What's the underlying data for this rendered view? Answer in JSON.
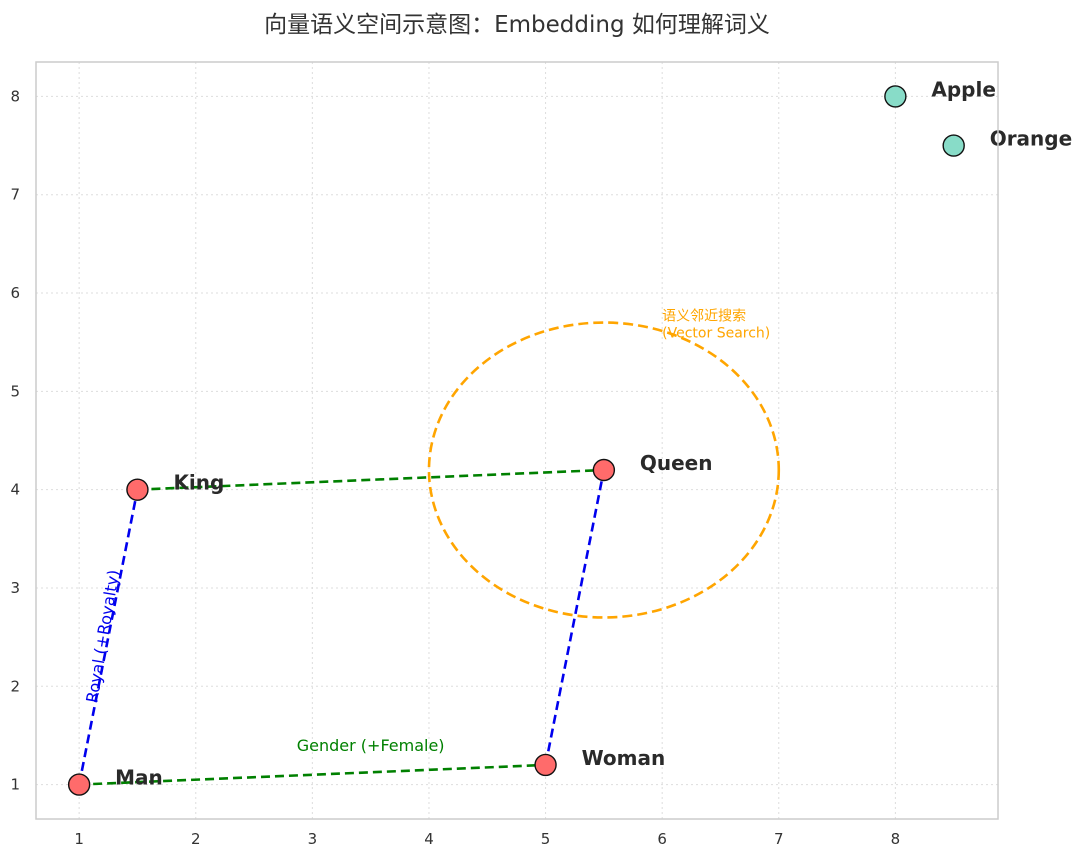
{
  "chart_data": {
    "type": "scatter",
    "title": "向量语义空间示意图：Embedding 如何理解词义",
    "xlabel": "",
    "ylabel": "",
    "xlim": [
      0.63,
      8.88
    ],
    "ylim": [
      0.65,
      8.35
    ],
    "x_ticks": [
      "1",
      "2",
      "3",
      "4",
      "5",
      "6",
      "7",
      "8"
    ],
    "y_ticks": [
      "1",
      "2",
      "3",
      "4",
      "5",
      "6",
      "7",
      "8"
    ],
    "grid": true,
    "points": [
      {
        "label": "King",
        "x": 1.5,
        "y": 4.0,
        "color": "#ff6b6b"
      },
      {
        "label": "Queen",
        "x": 5.5,
        "y": 4.2,
        "color": "#ff6b6b"
      },
      {
        "label": "Man",
        "x": 1.0,
        "y": 1.0,
        "color": "#ff6b6b"
      },
      {
        "label": "Woman",
        "x": 5.0,
        "y": 1.2,
        "color": "#ff6b6b"
      },
      {
        "label": "Apple",
        "x": 8.0,
        "y": 8.0,
        "color": "#88dcc8"
      },
      {
        "label": "Orange",
        "x": 8.5,
        "y": 7.5,
        "color": "#88dcc8"
      }
    ],
    "vectors": [
      {
        "from": [
          1.0,
          1.0
        ],
        "to": [
          5.0,
          1.2
        ],
        "color": "#008000"
      },
      {
        "from": [
          1.5,
          4.0
        ],
        "to": [
          5.5,
          4.2
        ],
        "color": "#008000"
      },
      {
        "from": [
          1.0,
          1.0
        ],
        "to": [
          1.5,
          4.0
        ],
        "color": "#0000ee"
      },
      {
        "from": [
          5.0,
          1.2
        ],
        "to": [
          5.5,
          4.2
        ],
        "color": "#0000ee"
      }
    ],
    "annotations": {
      "gender": {
        "text": "Gender (+Female)",
        "color": "#008000"
      },
      "royal": {
        "text": "Royal (+Royalty)",
        "color": "#0000ee"
      },
      "search_line1": "语义邻近搜索",
      "search_line2": "(Vector Search)",
      "search_color": "#ffa500"
    },
    "search_region": {
      "center": [
        5.5,
        4.2
      ],
      "rx": 1.5,
      "ry": 1.5
    },
    "colors": {
      "axis": "#cccccc",
      "grid": "#dddddd",
      "marker_edge": "#111111"
    }
  }
}
